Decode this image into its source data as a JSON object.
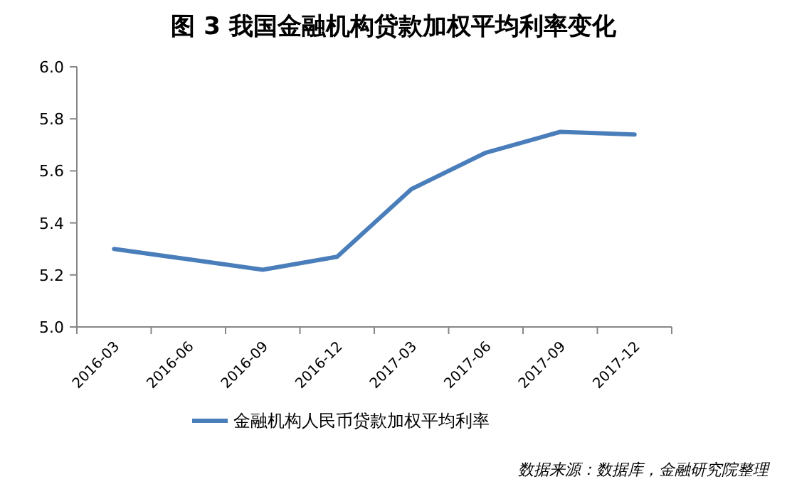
{
  "chart_data": {
    "type": "line",
    "title": "图 3  我国金融机构贷款加权平均利率变化",
    "categories": [
      "2016-03",
      "2016-06",
      "2016-09",
      "2016-12",
      "2017-03",
      "2017-06",
      "2017-09",
      "2017-12"
    ],
    "series": [
      {
        "name": "金融机构人民币贷款加权平均利率",
        "color": "#4a7ebb",
        "values": [
          5.3,
          5.26,
          5.22,
          5.27,
          5.53,
          5.67,
          5.75,
          5.74
        ]
      }
    ],
    "ylim": [
      5.0,
      6.0
    ],
    "yticks": [
      {
        "value": 5.0,
        "label": "5.0"
      },
      5.2,
      5.4,
      5.6,
      5.8,
      {
        "value": 6.0,
        "label": "6.0"
      }
    ],
    "legend": "bottom",
    "grid": false,
    "annotations": [
      "数据来源：数据库，金融研究院整理"
    ]
  }
}
